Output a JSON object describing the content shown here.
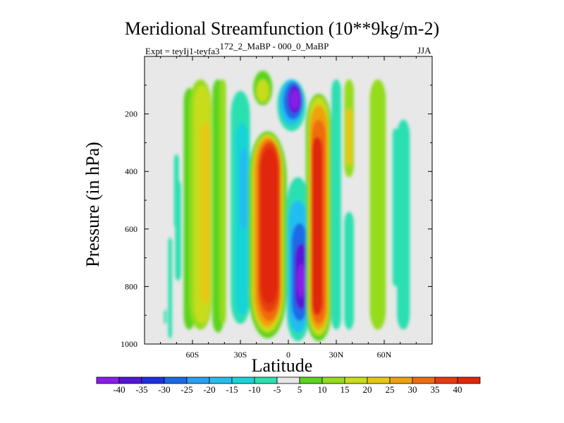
{
  "chart_data": {
    "type": "heatmap",
    "title": "Meridional Streamfunction (10**9kg/m-2)",
    "subtitle_left": "Expt = teyIj1-teyfa3",
    "subtitle_left_sup": "172_2_MaBP - 000_0_MaBP",
    "subtitle_right": "JJA",
    "xlabel": "Latitude",
    "ylabel": "Pressure (in hPa)",
    "xlim": [
      -90,
      90
    ],
    "ylim": [
      1000,
      0
    ],
    "x_ticks": [
      {
        "value": -60,
        "label": "60S"
      },
      {
        "value": -30,
        "label": "30S"
      },
      {
        "value": 0,
        "label": "0"
      },
      {
        "value": 30,
        "label": "30N"
      },
      {
        "value": 60,
        "label": "60N"
      }
    ],
    "y_ticks": [
      {
        "value": 200,
        "label": "200"
      },
      {
        "value": 400,
        "label": "400"
      },
      {
        "value": 600,
        "label": "600"
      },
      {
        "value": 800,
        "label": "800"
      },
      {
        "value": 1000,
        "label": "1000"
      }
    ],
    "colorbar": {
      "levels": [
        -40,
        -35,
        -30,
        -25,
        -20,
        -15,
        -10,
        -5,
        5,
        10,
        15,
        20,
        25,
        30,
        35,
        40
      ],
      "labels": [
        "-40",
        "-35",
        "-30",
        "-25",
        "-20",
        "-15",
        "-10",
        "-5",
        "5",
        "10",
        "15",
        "20",
        "25",
        "30",
        "35",
        "40"
      ],
      "colors": [
        "#8a1de8",
        "#5514d6",
        "#2030e0",
        "#1a6ae8",
        "#2aa0f0",
        "#24bdf0",
        "#18d4d8",
        "#2ce0b0",
        "#e6e6e6",
        "#5ad41c",
        "#94dc1c",
        "#c8dc1c",
        "#e6c814",
        "#f0a010",
        "#f06c10",
        "#e63c0c",
        "#e02808"
      ]
    },
    "features": [
      {
        "name": "NH tropical negative cell (upper)",
        "center": [
          0,
          180
        ],
        "peak": -40
      },
      {
        "name": "NH tropical negative cell (lower)",
        "center": [
          8,
          780
        ],
        "peak": -40
      },
      {
        "name": "SH tropical positive cell",
        "center": [
          -10,
          600
        ],
        "peak": 40
      },
      {
        "name": "NH subtropical positive cell",
        "center": [
          18,
          650
        ],
        "peak": 40
      },
      {
        "name": "SH midlatitude negative band",
        "center": [
          -25,
          500
        ],
        "peak": -15
      },
      {
        "name": "SH midlatitude positive band",
        "center": [
          -45,
          550
        ],
        "peak": 20
      },
      {
        "name": "NH midlatitude positive band",
        "center": [
          55,
          300
        ],
        "peak": 10
      },
      {
        "name": "NH high-latitude negative band",
        "center": [
          72,
          700
        ],
        "peak": -10
      }
    ]
  }
}
